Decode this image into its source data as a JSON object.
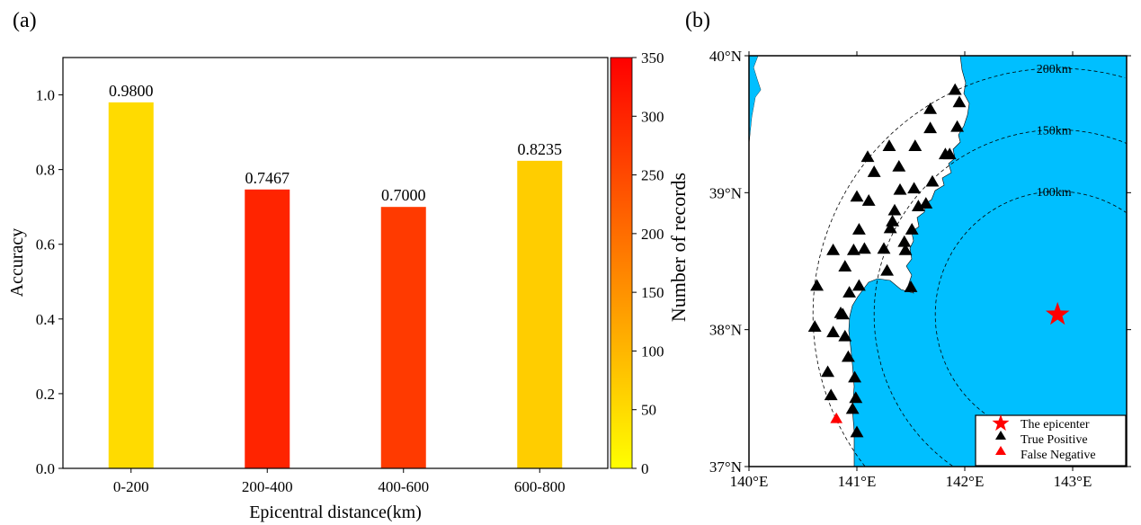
{
  "chart_data": [
    {
      "panel_label": "(a)",
      "type": "bar",
      "categories": [
        "0-200",
        "200-400",
        "400-600",
        "600-800"
      ],
      "values": [
        0.98,
        0.7467,
        0.7,
        0.8235
      ],
      "data_labels": [
        "0.9800",
        "0.7467",
        "0.7000",
        "0.8235"
      ],
      "record_counts_estimated": [
        50,
        300,
        270,
        68
      ],
      "xlabel": "Epicentral distance(km)",
      "ylabel": "Accuracy",
      "ylim": [
        0,
        1.1
      ],
      "yticks": [
        "0.0",
        "0.2",
        "0.4",
        "0.6",
        "0.8",
        "1.0"
      ],
      "grid": false,
      "colorbar": {
        "label": "Number of records",
        "range": [
          0,
          350
        ],
        "ticks": [
          "0",
          "50",
          "100",
          "150",
          "200",
          "250",
          "300",
          "350"
        ],
        "colormap": "yellow-to-red",
        "color_low": "#FFFF00",
        "color_high": "#FF0000"
      }
    },
    {
      "panel_label": "(b)",
      "type": "scatter",
      "xlim": [
        140,
        143.5
      ],
      "ylim": [
        37,
        40
      ],
      "xticks": [
        "140°E",
        "141°E",
        "142°E",
        "143°E"
      ],
      "yticks": [
        "37°N",
        "38°N",
        "39°N",
        "40°N"
      ],
      "sea_color": "#00BFFF",
      "land_color": "#FFFFFF",
      "epicenter": {
        "lon": 142.86,
        "lat": 38.11,
        "color": "#FF0000"
      },
      "rings": [
        {
          "km": 100,
          "label": "100km"
        },
        {
          "km": 150,
          "label": "150km"
        },
        {
          "km": 200,
          "label": "200km"
        }
      ],
      "true_positive": [
        [
          141.91,
          39.75
        ],
        [
          141.95,
          39.66
        ],
        [
          141.68,
          39.61
        ],
        [
          141.93,
          39.48
        ],
        [
          141.68,
          39.47
        ],
        [
          141.3,
          39.34
        ],
        [
          141.54,
          39.34
        ],
        [
          141.1,
          39.26
        ],
        [
          141.82,
          39.28
        ],
        [
          141.86,
          39.28
        ],
        [
          141.16,
          39.15
        ],
        [
          141.39,
          39.19
        ],
        [
          141.7,
          39.08
        ],
        [
          141.0,
          38.97
        ],
        [
          141.11,
          38.94
        ],
        [
          141.4,
          39.02
        ],
        [
          141.53,
          39.03
        ],
        [
          141.57,
          38.9
        ],
        [
          141.64,
          38.92
        ],
        [
          141.35,
          38.87
        ],
        [
          141.33,
          38.79
        ],
        [
          141.31,
          38.74
        ],
        [
          141.51,
          38.73
        ],
        [
          141.02,
          38.73
        ],
        [
          140.78,
          38.58
        ],
        [
          140.97,
          38.58
        ],
        [
          141.07,
          38.59
        ],
        [
          141.25,
          38.59
        ],
        [
          141.44,
          38.64
        ],
        [
          141.45,
          38.58
        ],
        [
          140.89,
          38.46
        ],
        [
          141.28,
          38.43
        ],
        [
          140.63,
          38.32
        ],
        [
          141.02,
          38.32
        ],
        [
          140.93,
          38.27
        ],
        [
          141.5,
          38.31
        ],
        [
          140.85,
          38.12
        ],
        [
          140.87,
          38.11
        ],
        [
          140.61,
          38.02
        ],
        [
          140.78,
          37.98
        ],
        [
          140.89,
          37.95
        ],
        [
          140.92,
          37.8
        ],
        [
          140.73,
          37.69
        ],
        [
          140.98,
          37.65
        ],
        [
          140.76,
          37.52
        ],
        [
          140.99,
          37.5
        ],
        [
          140.96,
          37.42
        ],
        [
          141.0,
          37.25
        ]
      ],
      "false_negative": [
        [
          140.81,
          37.35
        ]
      ],
      "legend": {
        "placement": "bottom-right",
        "items": [
          {
            "label": "The epicenter",
            "marker": "star",
            "color": "#FF0000"
          },
          {
            "label": "True Positive",
            "marker": "triangle",
            "color": "#000000"
          },
          {
            "label": "False Negative",
            "marker": "triangle",
            "color": "#FF0000"
          }
        ]
      }
    }
  ]
}
